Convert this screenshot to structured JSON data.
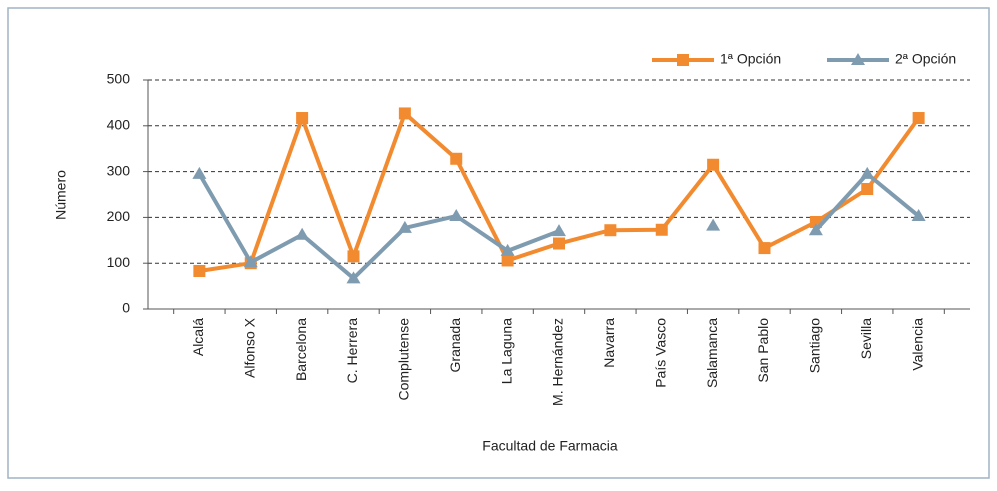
{
  "chart_data": {
    "type": "line",
    "xlabel": "Facultad de Farmacia",
    "ylabel": "Número",
    "categories": [
      "Alcalá",
      "Alfonso X",
      "Barcelona",
      "C. Herrera",
      "Complutense",
      "Granada",
      "La Laguna",
      "M. Hernández",
      "Navarra",
      "País Vasco",
      "Salamanca",
      "San Pablo",
      "Santiago",
      "Sevilla",
      "Valencia"
    ],
    "series": [
      {
        "name": "1ª Opción",
        "color": "#f28b30",
        "marker": "square",
        "values": [
          83,
          100,
          417,
          115,
          427,
          328,
          106,
          143,
          172,
          173,
          315,
          133,
          190,
          262,
          417
        ]
      },
      {
        "name": "2ª Opción",
        "color": "#7f9bb0",
        "marker": "triangle",
        "values": [
          295,
          102,
          162,
          67,
          177,
          203,
          127,
          170,
          null,
          null,
          182,
          null,
          172,
          295,
          203
        ]
      }
    ],
    "ylim": [
      0,
      500
    ],
    "yticks": [
      0,
      100,
      200,
      300,
      400,
      500
    ],
    "grid": true,
    "legend": "top-right"
  }
}
